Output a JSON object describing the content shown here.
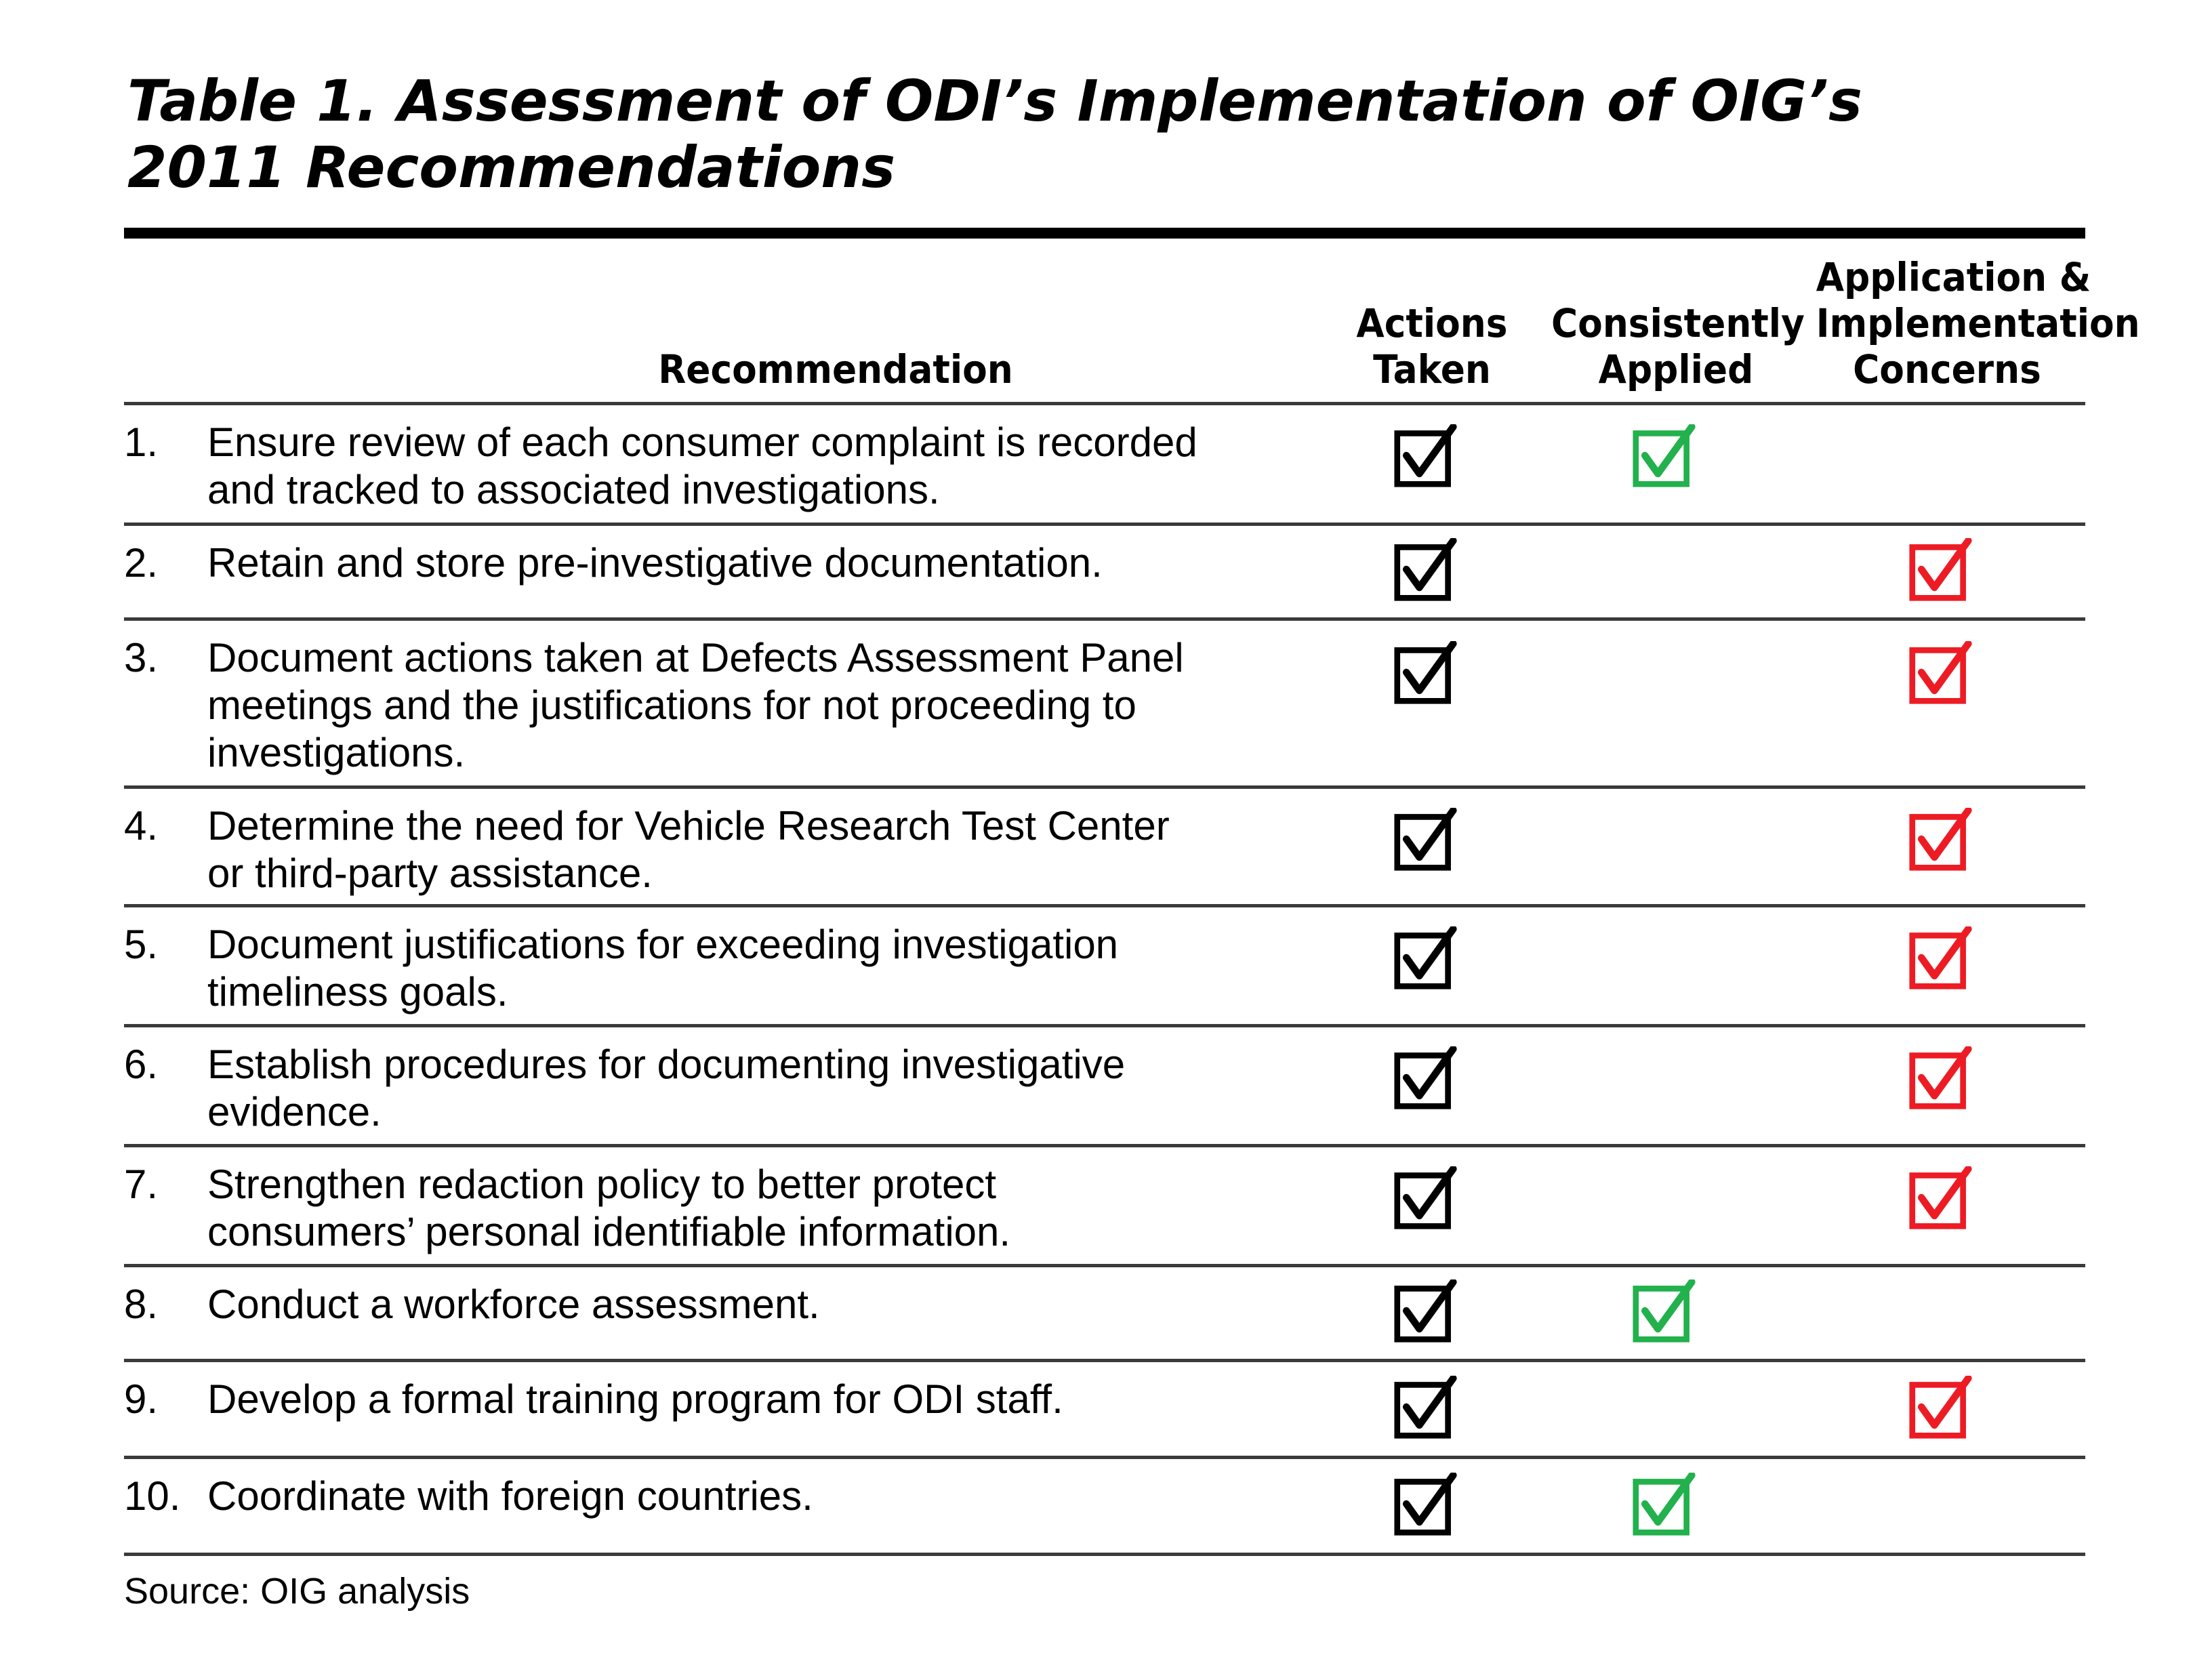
{
  "title": {
    "line1": "Table 1. Assessment of ODI’s Implementation of OIG’s",
    "line2": "2011 Recommendations"
  },
  "headers": {
    "recommendation": "Recommendation",
    "actions_taken": [
      "Actions",
      "Taken"
    ],
    "consistently_applied": [
      "Consistently",
      "Applied"
    ],
    "concerns": [
      "Application &",
      "Implementation",
      "Concerns"
    ]
  },
  "colors": {
    "actions_check": "#000000",
    "consistent_check": "#22b14c",
    "concern_check": "#ed1c24"
  },
  "rows": [
    {
      "num": "1.",
      "lines": [
        "Ensure review of each consumer complaint is recorded",
        "and tracked to associated investigations."
      ],
      "actions_taken": true,
      "consistently_applied": true,
      "concerns": false
    },
    {
      "num": "2.",
      "lines": [
        "Retain and store pre-investigative documentation."
      ],
      "actions_taken": true,
      "consistently_applied": false,
      "concerns": true
    },
    {
      "num": "3.",
      "lines": [
        "Document actions taken at Defects Assessment Panel",
        "meetings and the justifications for not proceeding to",
        "investigations."
      ],
      "actions_taken": true,
      "consistently_applied": false,
      "concerns": true
    },
    {
      "num": "4.",
      "lines": [
        "Determine the need for Vehicle Research Test Center",
        "or third-party assistance."
      ],
      "actions_taken": true,
      "consistently_applied": false,
      "concerns": true
    },
    {
      "num": "5.",
      "lines": [
        "Document justifications for exceeding investigation",
        "timeliness goals."
      ],
      "actions_taken": true,
      "consistently_applied": false,
      "concerns": true
    },
    {
      "num": "6.",
      "lines": [
        "Establish procedures for documenting investigative",
        "evidence."
      ],
      "actions_taken": true,
      "consistently_applied": false,
      "concerns": true
    },
    {
      "num": "7.",
      "lines": [
        "Strengthen redaction policy to better protect",
        "consumers’ personal identifiable information."
      ],
      "actions_taken": true,
      "consistently_applied": false,
      "concerns": true
    },
    {
      "num": "8.",
      "lines": [
        "Conduct a workforce assessment."
      ],
      "actions_taken": true,
      "consistently_applied": true,
      "concerns": false
    },
    {
      "num": "9.",
      "lines": [
        "Develop a formal training program for ODI staff."
      ],
      "actions_taken": true,
      "consistently_applied": false,
      "concerns": true
    },
    {
      "num": "10.",
      "lines": [
        "Coordinate with foreign countries."
      ],
      "actions_taken": true,
      "consistently_applied": true,
      "concerns": false
    }
  ],
  "source": "Source: OIG analysis"
}
